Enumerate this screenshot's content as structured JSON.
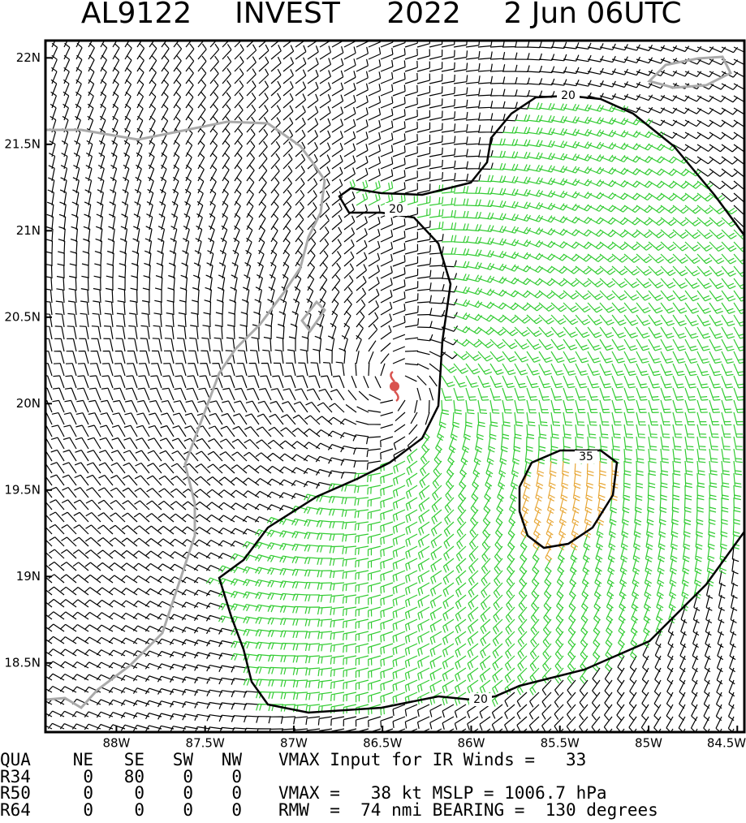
{
  "title": [
    "AL9122",
    "INVEST",
    "2022",
    "2 Jun 06UTC"
  ],
  "map": {
    "xlim": [
      -88.4,
      -84.46
    ],
    "ylim": [
      18.1,
      22.1
    ],
    "xticks": [
      {
        "value": -88,
        "label": "88W"
      },
      {
        "value": -87.5,
        "label": "87.5W"
      },
      {
        "value": -87,
        "label": "87W"
      },
      {
        "value": -86.5,
        "label": "86.5W"
      },
      {
        "value": -86,
        "label": "86W"
      },
      {
        "value": -85.5,
        "label": "85.5W"
      },
      {
        "value": -85,
        "label": "85W"
      },
      {
        "value": -84.5,
        "label": "84.5W"
      }
    ],
    "yticks": [
      {
        "value": 18.5,
        "label": "18.5N"
      },
      {
        "value": 19,
        "label": "19N"
      },
      {
        "value": 19.5,
        "label": "19.5N"
      },
      {
        "value": 20,
        "label": "20N"
      },
      {
        "value": 20.5,
        "label": "20.5N"
      },
      {
        "value": 21,
        "label": "21N"
      },
      {
        "value": 21.5,
        "label": "21.5N"
      },
      {
        "value": 22,
        "label": "22N"
      }
    ],
    "contour_labels": [
      20,
      20,
      20,
      35
    ]
  },
  "table": {
    "rows": [
      [
        "QUA",
        "NE",
        "SE",
        "SW",
        "NW"
      ],
      [
        "R34",
        "0",
        "80",
        "0",
        "0"
      ],
      [
        "R50",
        "0",
        "0",
        "0",
        "0"
      ],
      [
        "R64",
        "0",
        "0",
        "0",
        "0"
      ]
    ]
  },
  "notes": [
    "VMAX Input for IR Winds =   33",
    "VMAX =   38 kt MSLP = 1006.7 hPa",
    "RMW  =  74 nmi BEARING =  130 degrees"
  ]
}
